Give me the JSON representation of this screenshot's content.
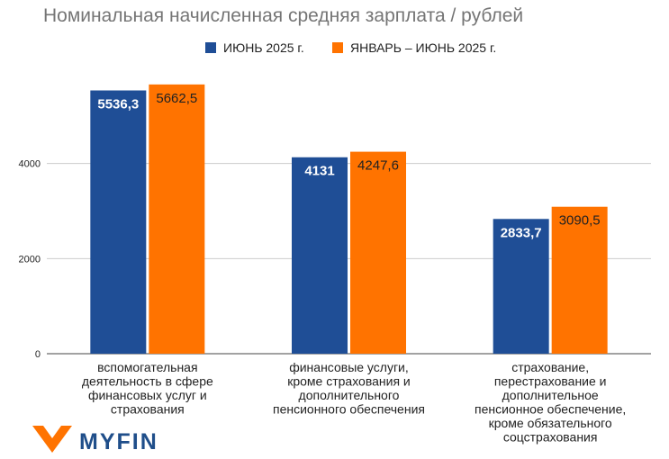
{
  "chart_data": {
    "type": "bar",
    "title": "Номинальная начисленная средняя зарплата / рублей",
    "categories": [
      [
        "вспомогательная",
        "деятельность в сфере",
        "финансовых услуг и",
        "страхования"
      ],
      [
        "финансовые услуги,",
        "кроме страхования и",
        "дополнительного",
        "пенсионного обеспечения"
      ],
      [
        "страхование,",
        "перестрахование и",
        "дополнительное",
        "пенсионное обеспечение,",
        "кроме обязательного",
        "соцстрахования"
      ]
    ],
    "series": [
      {
        "name": "ИЮНЬ 2025 г.",
        "color": "#1f4e96",
        "values": [
          5536.3,
          4131,
          2833.7
        ],
        "labels": [
          "5536,3",
          "4131",
          "2833,7"
        ]
      },
      {
        "name": "ЯНВАРЬ – ИЮНЬ 2025 г.",
        "color": "#ff7300",
        "values": [
          5662.5,
          4247.6,
          3090.5
        ],
        "labels": [
          "5662,5",
          "4247,6",
          "3090,5"
        ]
      }
    ],
    "yticks": [
      0,
      2000,
      4000
    ],
    "ylim": [
      0,
      6000
    ],
    "legend": "top-center",
    "grid": true
  },
  "logo": {
    "text": "MYFIN",
    "color": "#1f4e8a",
    "accent": "#ff7300"
  }
}
